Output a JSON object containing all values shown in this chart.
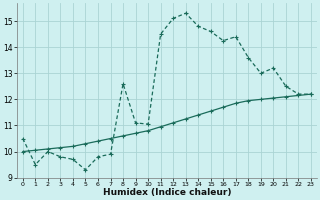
{
  "title": "",
  "xlabel": "Humidex (Indice chaleur)",
  "bg_color": "#cff0f0",
  "grid_color": "#aad4d4",
  "line_color": "#1a6b5a",
  "xlim": [
    -0.5,
    23.5
  ],
  "ylim": [
    9.0,
    15.7
  ],
  "yticks": [
    9,
    10,
    11,
    12,
    13,
    14,
    15
  ],
  "xticks": [
    0,
    1,
    2,
    3,
    4,
    5,
    6,
    7,
    8,
    9,
    10,
    11,
    12,
    13,
    14,
    15,
    16,
    17,
    18,
    19,
    20,
    21,
    22,
    23
  ],
  "series1_x": [
    0,
    1,
    2,
    3,
    4,
    5,
    6,
    7,
    8,
    9,
    10,
    11,
    12,
    13,
    14,
    15,
    16,
    17,
    18,
    19,
    20,
    21,
    22,
    23
  ],
  "series1_y": [
    10.5,
    9.5,
    10.0,
    9.8,
    9.7,
    9.3,
    9.8,
    9.9,
    12.6,
    11.1,
    11.05,
    14.5,
    15.1,
    15.3,
    14.8,
    14.6,
    14.25,
    14.4,
    13.6,
    13.0,
    13.2,
    12.5,
    12.2,
    12.2
  ],
  "series2_x": [
    0,
    1,
    2,
    3,
    4,
    5,
    6,
    7,
    8,
    9,
    10,
    11,
    12,
    13,
    14,
    15,
    16,
    17,
    18,
    19,
    20,
    21,
    22,
    23
  ],
  "series2_y": [
    10.0,
    10.05,
    10.1,
    10.15,
    10.2,
    10.3,
    10.4,
    10.5,
    10.6,
    10.7,
    10.8,
    10.95,
    11.1,
    11.25,
    11.4,
    11.55,
    11.7,
    11.85,
    11.95,
    12.0,
    12.05,
    12.1,
    12.15,
    12.2
  ]
}
